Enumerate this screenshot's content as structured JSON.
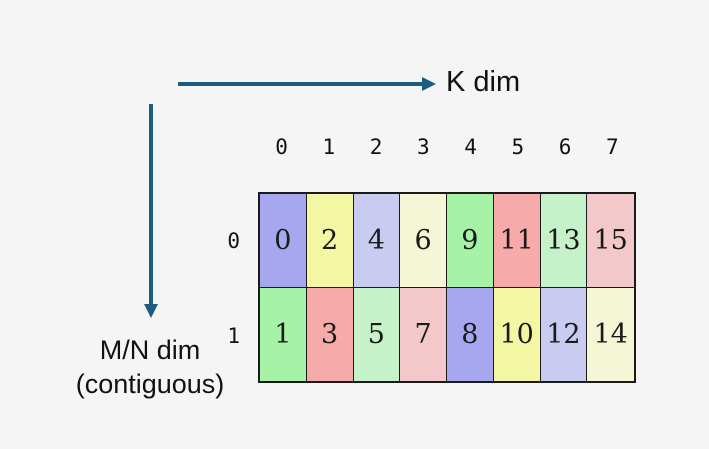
{
  "background": "#f4f5f4",
  "arrow_color": "#1d5c7e",
  "text_color": "#111111",
  "axes": {
    "k_label": "K dim",
    "mn_label_line1": "M/N dim",
    "mn_label_line2": "(contiguous)"
  },
  "palette": {
    "periwinkle": "#a7a7ef",
    "green": "#a6f3a8",
    "yellow": "#f3f6a3",
    "salmon": "#f6aaaa",
    "lavender": "#cacbf0",
    "mint": "#c5f2c8",
    "paleyellow": "#f5f6d5",
    "pink": "#f3c8cb"
  },
  "table": {
    "column_headers": [
      "0",
      "1",
      "2",
      "3",
      "4",
      "5",
      "6",
      "7"
    ],
    "rows": [
      {
        "label": "0",
        "cells": [
          {
            "value": "0",
            "color": "periwinkle"
          },
          {
            "value": "2",
            "color": "yellow"
          },
          {
            "value": "4",
            "color": "lavender"
          },
          {
            "value": "6",
            "color": "paleyellow"
          },
          {
            "value": "9",
            "color": "green"
          },
          {
            "value": "11",
            "color": "salmon"
          },
          {
            "value": "13",
            "color": "mint"
          },
          {
            "value": "15",
            "color": "pink"
          }
        ]
      },
      {
        "label": "1",
        "cells": [
          {
            "value": "1",
            "color": "green"
          },
          {
            "value": "3",
            "color": "salmon"
          },
          {
            "value": "5",
            "color": "mint"
          },
          {
            "value": "7",
            "color": "pink"
          },
          {
            "value": "8",
            "color": "periwinkle"
          },
          {
            "value": "10",
            "color": "yellow"
          },
          {
            "value": "12",
            "color": "lavender"
          },
          {
            "value": "14",
            "color": "paleyellow"
          }
        ]
      }
    ]
  }
}
